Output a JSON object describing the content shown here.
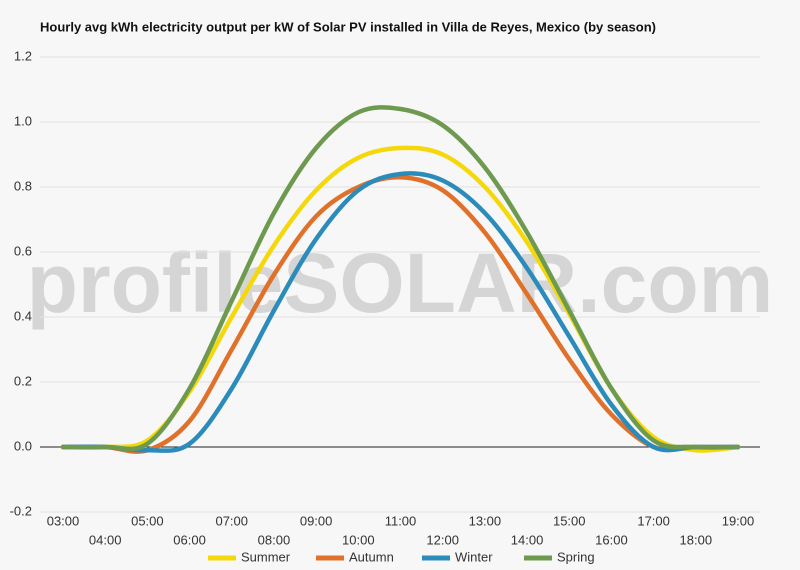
{
  "chart_data": {
    "type": "line",
    "title": "Hourly avg kWh electricity output per kW of Solar PV installed in Villa de Reyes, Mexico (by season)",
    "watermark": "profileSOLAR.com",
    "categories": [
      "03:00",
      "04:00",
      "05:00",
      "06:00",
      "07:00",
      "08:00",
      "09:00",
      "10:00",
      "11:00",
      "12:00",
      "13:00",
      "14:00",
      "15:00",
      "16:00",
      "17:00",
      "18:00",
      "19:00"
    ],
    "series": [
      {
        "name": "Summer",
        "color": "#f5d80c",
        "values": [
          0,
          0,
          0.02,
          0.17,
          0.4,
          0.62,
          0.79,
          0.89,
          0.92,
          0.9,
          0.8,
          0.63,
          0.41,
          0.18,
          0.03,
          -0.01,
          0
        ]
      },
      {
        "name": "Autumn",
        "color": "#e0712a",
        "values": [
          0,
          0,
          -0.01,
          0.08,
          0.3,
          0.53,
          0.71,
          0.8,
          0.83,
          0.79,
          0.66,
          0.47,
          0.27,
          0.1,
          0,
          0,
          0
        ]
      },
      {
        "name": "Winter",
        "color": "#2b8bba",
        "values": [
          0,
          0,
          -0.01,
          0.01,
          0.18,
          0.42,
          0.64,
          0.79,
          0.84,
          0.82,
          0.72,
          0.55,
          0.34,
          0.13,
          0,
          0,
          0
        ]
      },
      {
        "name": "Spring",
        "color": "#6d9a4f",
        "values": [
          0,
          0,
          0.01,
          0.18,
          0.45,
          0.72,
          0.92,
          1.03,
          1.04,
          0.99,
          0.86,
          0.66,
          0.42,
          0.18,
          0.02,
          0,
          0
        ]
      }
    ],
    "ylim": [
      -0.2,
      1.2
    ],
    "yticks": [
      -0.2,
      {
        "value": 0,
        "label": "0.0"
      },
      0.2,
      0.4,
      0.6,
      0.8,
      {
        "value": 1,
        "label": "1.0"
      },
      1.2
    ],
    "grid": true
  }
}
